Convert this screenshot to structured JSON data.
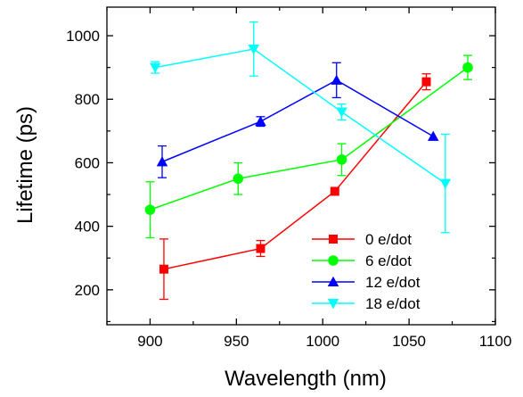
{
  "chart_data": {
    "type": "line",
    "xlabel": "Wavelength (nm)",
    "ylabel": "Lifetime (ps)",
    "xlim": [
      875,
      1100
    ],
    "ylim": [
      90,
      1090
    ],
    "x_ticks": [
      900,
      950,
      1000,
      1050,
      1100
    ],
    "y_ticks": [
      200,
      400,
      600,
      800,
      1000
    ],
    "x_minor_step": 25,
    "y_minor_step": 100,
    "grid": false,
    "legend_position": "lower-right",
    "series": [
      {
        "name": "0 e/dot",
        "color": "#ff0000",
        "marker": "square",
        "points": [
          {
            "x": 908,
            "y": 265,
            "err": 95
          },
          {
            "x": 964,
            "y": 330,
            "err": 25
          },
          {
            "x": 1007,
            "y": 510,
            "err": 0
          },
          {
            "x": 1060,
            "y": 855,
            "err": 25
          }
        ]
      },
      {
        "name": "6 e/dot",
        "color": "#00ff00",
        "marker": "circle",
        "points": [
          {
            "x": 900,
            "y": 452,
            "err": 88
          },
          {
            "x": 951,
            "y": 550,
            "err": 50
          },
          {
            "x": 1011,
            "y": 610,
            "err": 50
          },
          {
            "x": 1084,
            "y": 900,
            "err": 38
          }
        ]
      },
      {
        "name": "12 e/dot",
        "color": "#0000ff",
        "marker": "triangle-up",
        "points": [
          {
            "x": 907,
            "y": 603,
            "err": 50
          },
          {
            "x": 964,
            "y": 730,
            "err": 15
          },
          {
            "x": 1008,
            "y": 860,
            "err": 55
          },
          {
            "x": 1064,
            "y": 683,
            "err": 0
          }
        ]
      },
      {
        "name": "18 e/dot",
        "color": "#00ffff",
        "marker": "triangle-down",
        "points": [
          {
            "x": 903,
            "y": 900,
            "err": 18
          },
          {
            "x": 960,
            "y": 958,
            "err": 85
          },
          {
            "x": 1011,
            "y": 760,
            "err": 25
          },
          {
            "x": 1071,
            "y": 535,
            "err": 155
          }
        ]
      }
    ]
  }
}
